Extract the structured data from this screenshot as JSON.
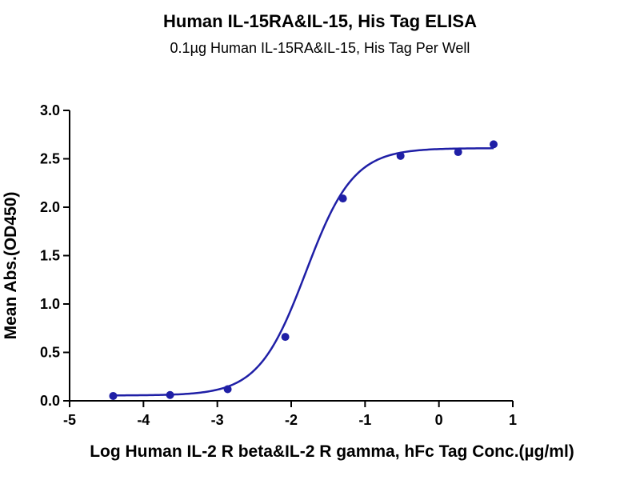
{
  "chart_data": {
    "type": "scatter",
    "title": "Human IL-15RA&IL-15, His Tag ELISA",
    "subtitle": "0.1µg Human IL-15RA&IL-15, His Tag Per Well",
    "xlabel": "Log Human IL-2 R beta&IL-2 R gamma, hFc Tag Conc.(µg/ml)",
    "ylabel": "Mean Abs.(OD450)",
    "xlim": [
      -5,
      1
    ],
    "ylim": [
      0,
      3.0
    ],
    "x_ticks": [
      "-5",
      "-4",
      "-3",
      "-2",
      "-1",
      "0",
      "1"
    ],
    "y_ticks": [
      "0.0",
      "0.5",
      "1.0",
      "1.5",
      "2.0",
      "2.5",
      "3.0"
    ],
    "grid": false,
    "legend": "none",
    "color": "#1f1fa6",
    "series": [
      {
        "x": [
          -4.41,
          -3.64,
          -2.86,
          -2.08,
          -1.3,
          -0.52,
          0.26,
          0.74
        ],
        "y": [
          0.05,
          0.06,
          0.12,
          0.66,
          2.09,
          2.53,
          2.57,
          2.65
        ]
      }
    ],
    "fit": {
      "model": "4PL",
      "bottom": 0.055,
      "top": 2.61,
      "log_ec50": -1.8,
      "hill_slope": 1.35
    }
  }
}
